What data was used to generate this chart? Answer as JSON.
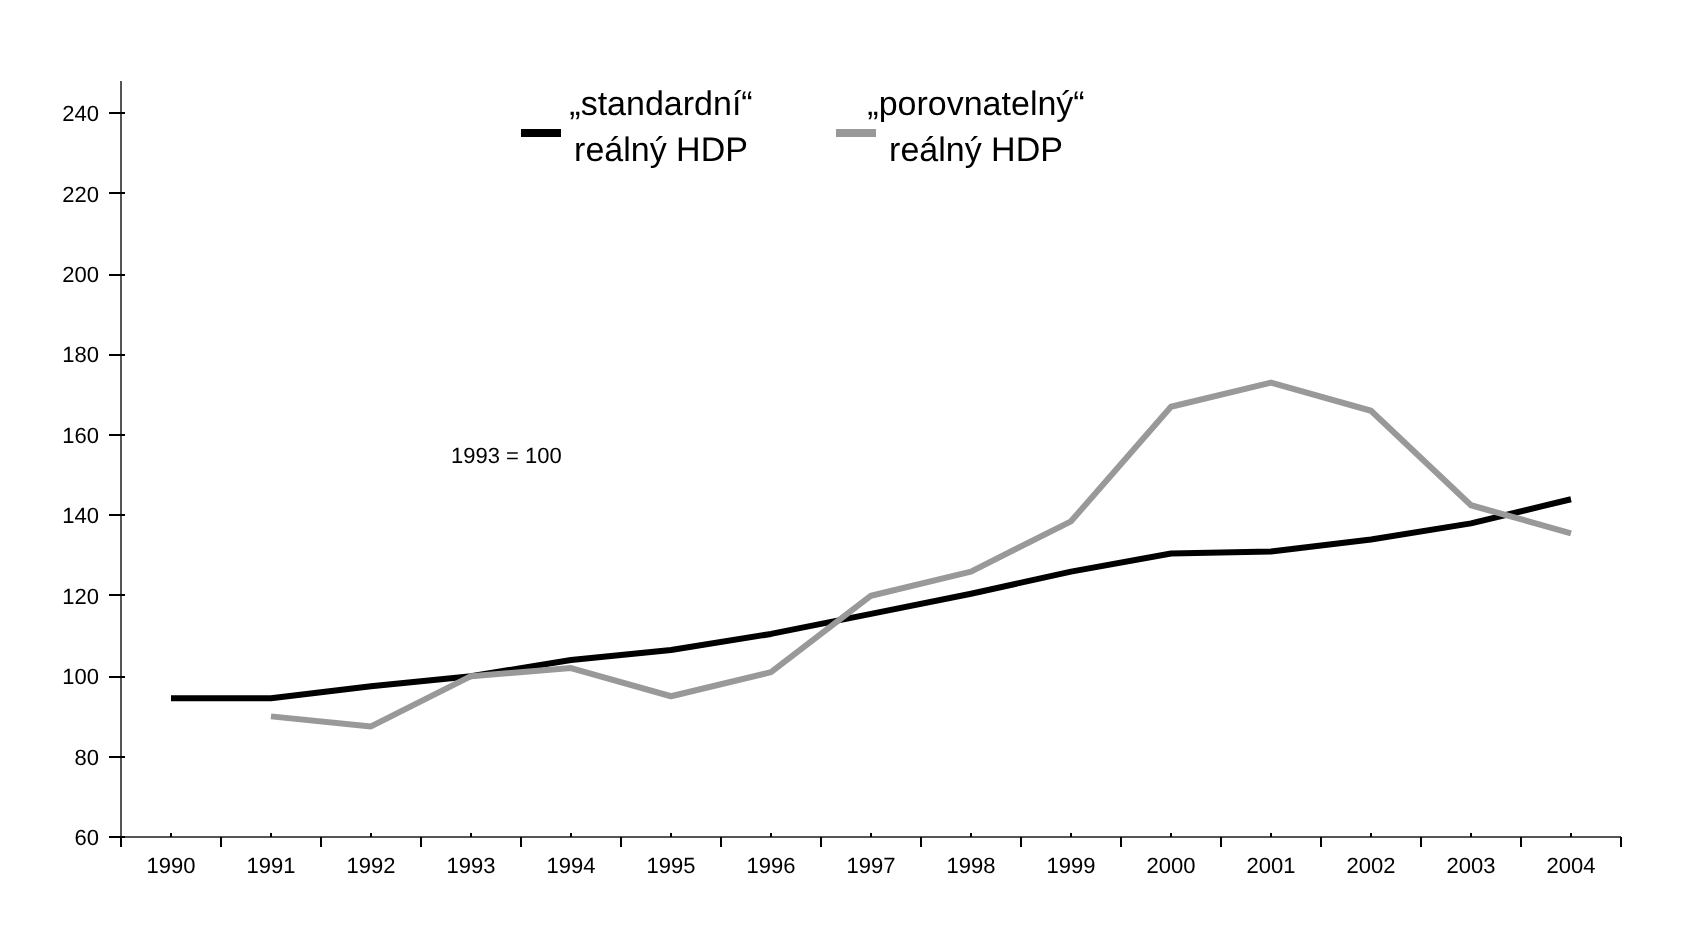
{
  "chart_data": {
    "type": "line",
    "categories": [
      "1990",
      "1991",
      "1992",
      "1993",
      "1994",
      "1995",
      "1996",
      "1997",
      "1998",
      "1999",
      "2000",
      "2001",
      "2002",
      "2003",
      "2004"
    ],
    "series": [
      {
        "name": "„standardní“\nreálný HDP",
        "color": "#000000",
        "values": [
          94.5,
          94.5,
          97.5,
          100,
          104,
          106.5,
          110.5,
          115.5,
          120.5,
          126,
          130.5,
          131,
          134,
          138,
          144
        ]
      },
      {
        "name": "„porovnatelný“\nreálný HDP",
        "color": "#999999",
        "values": [
          null,
          90,
          87.5,
          100,
          102,
          95,
          101,
          120,
          126,
          138.5,
          167,
          173,
          166,
          142.5,
          135.5
        ]
      }
    ],
    "ylim": [
      60,
      248
    ],
    "yticks": [
      60,
      80,
      100,
      120,
      140,
      160,
      180,
      200,
      220,
      240
    ],
    "annotations": [
      "1993 = 100"
    ],
    "grid": false,
    "legend": "top",
    "marker": "none",
    "line_style": "solid"
  }
}
